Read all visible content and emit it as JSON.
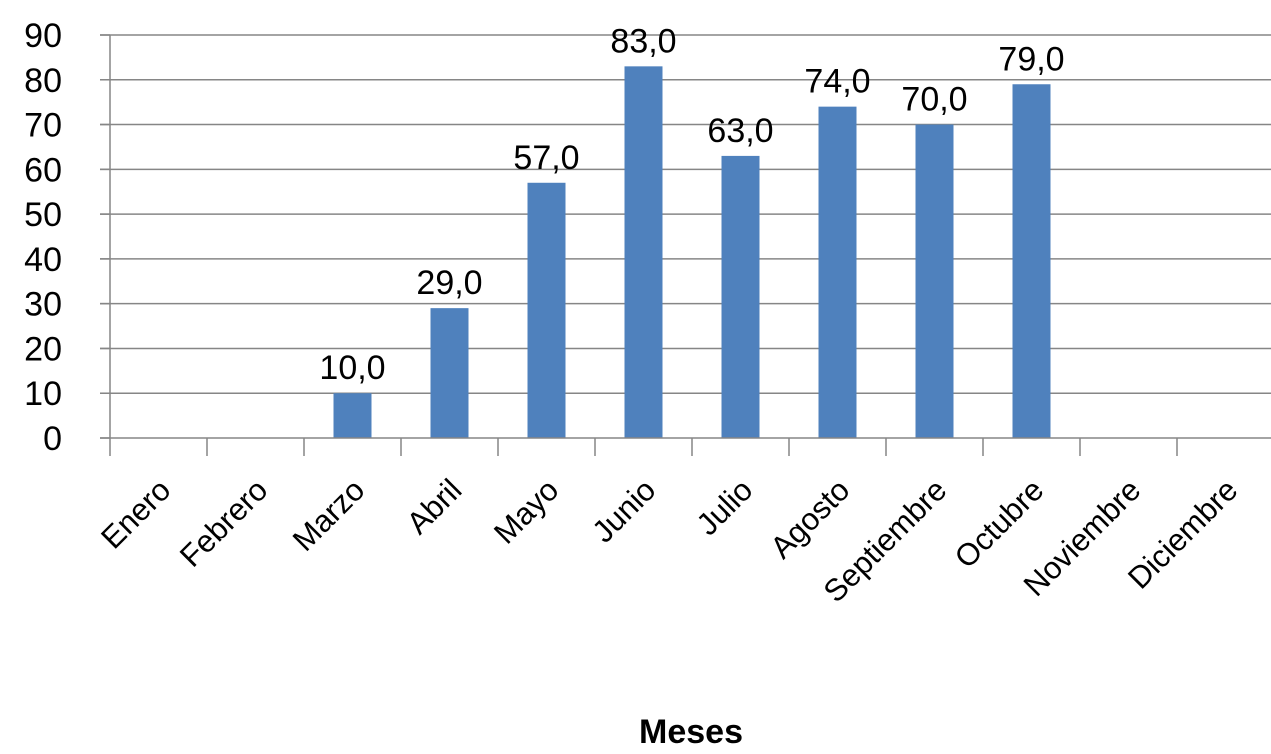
{
  "chart_data": {
    "type": "bar",
    "categories": [
      "Enero",
      "Febrero",
      "Marzo",
      "Abril",
      "Mayo",
      "Junio",
      "Julio",
      "Agosto",
      "Septiembre",
      "Octubre",
      "Noviembre",
      "Diciembre"
    ],
    "values": [
      null,
      null,
      10.0,
      29.0,
      57.0,
      83.0,
      63.0,
      74.0,
      70.0,
      79.0,
      null,
      null
    ],
    "data_labels": [
      "",
      "",
      "10,0",
      "29,0",
      "57,0",
      "83,0",
      "63,0",
      "74,0",
      "70,0",
      "79,0",
      "",
      ""
    ],
    "yticks": [
      0,
      10,
      20,
      30,
      40,
      50,
      60,
      70,
      80,
      90
    ],
    "ylim": [
      0,
      90
    ],
    "xlabel": "Meses",
    "ylabel": "",
    "title": "",
    "grid": "horizontal",
    "legend": "none",
    "colors": {
      "bar": "#4F81BD",
      "grid": "#868686",
      "axis": "#868686"
    }
  }
}
